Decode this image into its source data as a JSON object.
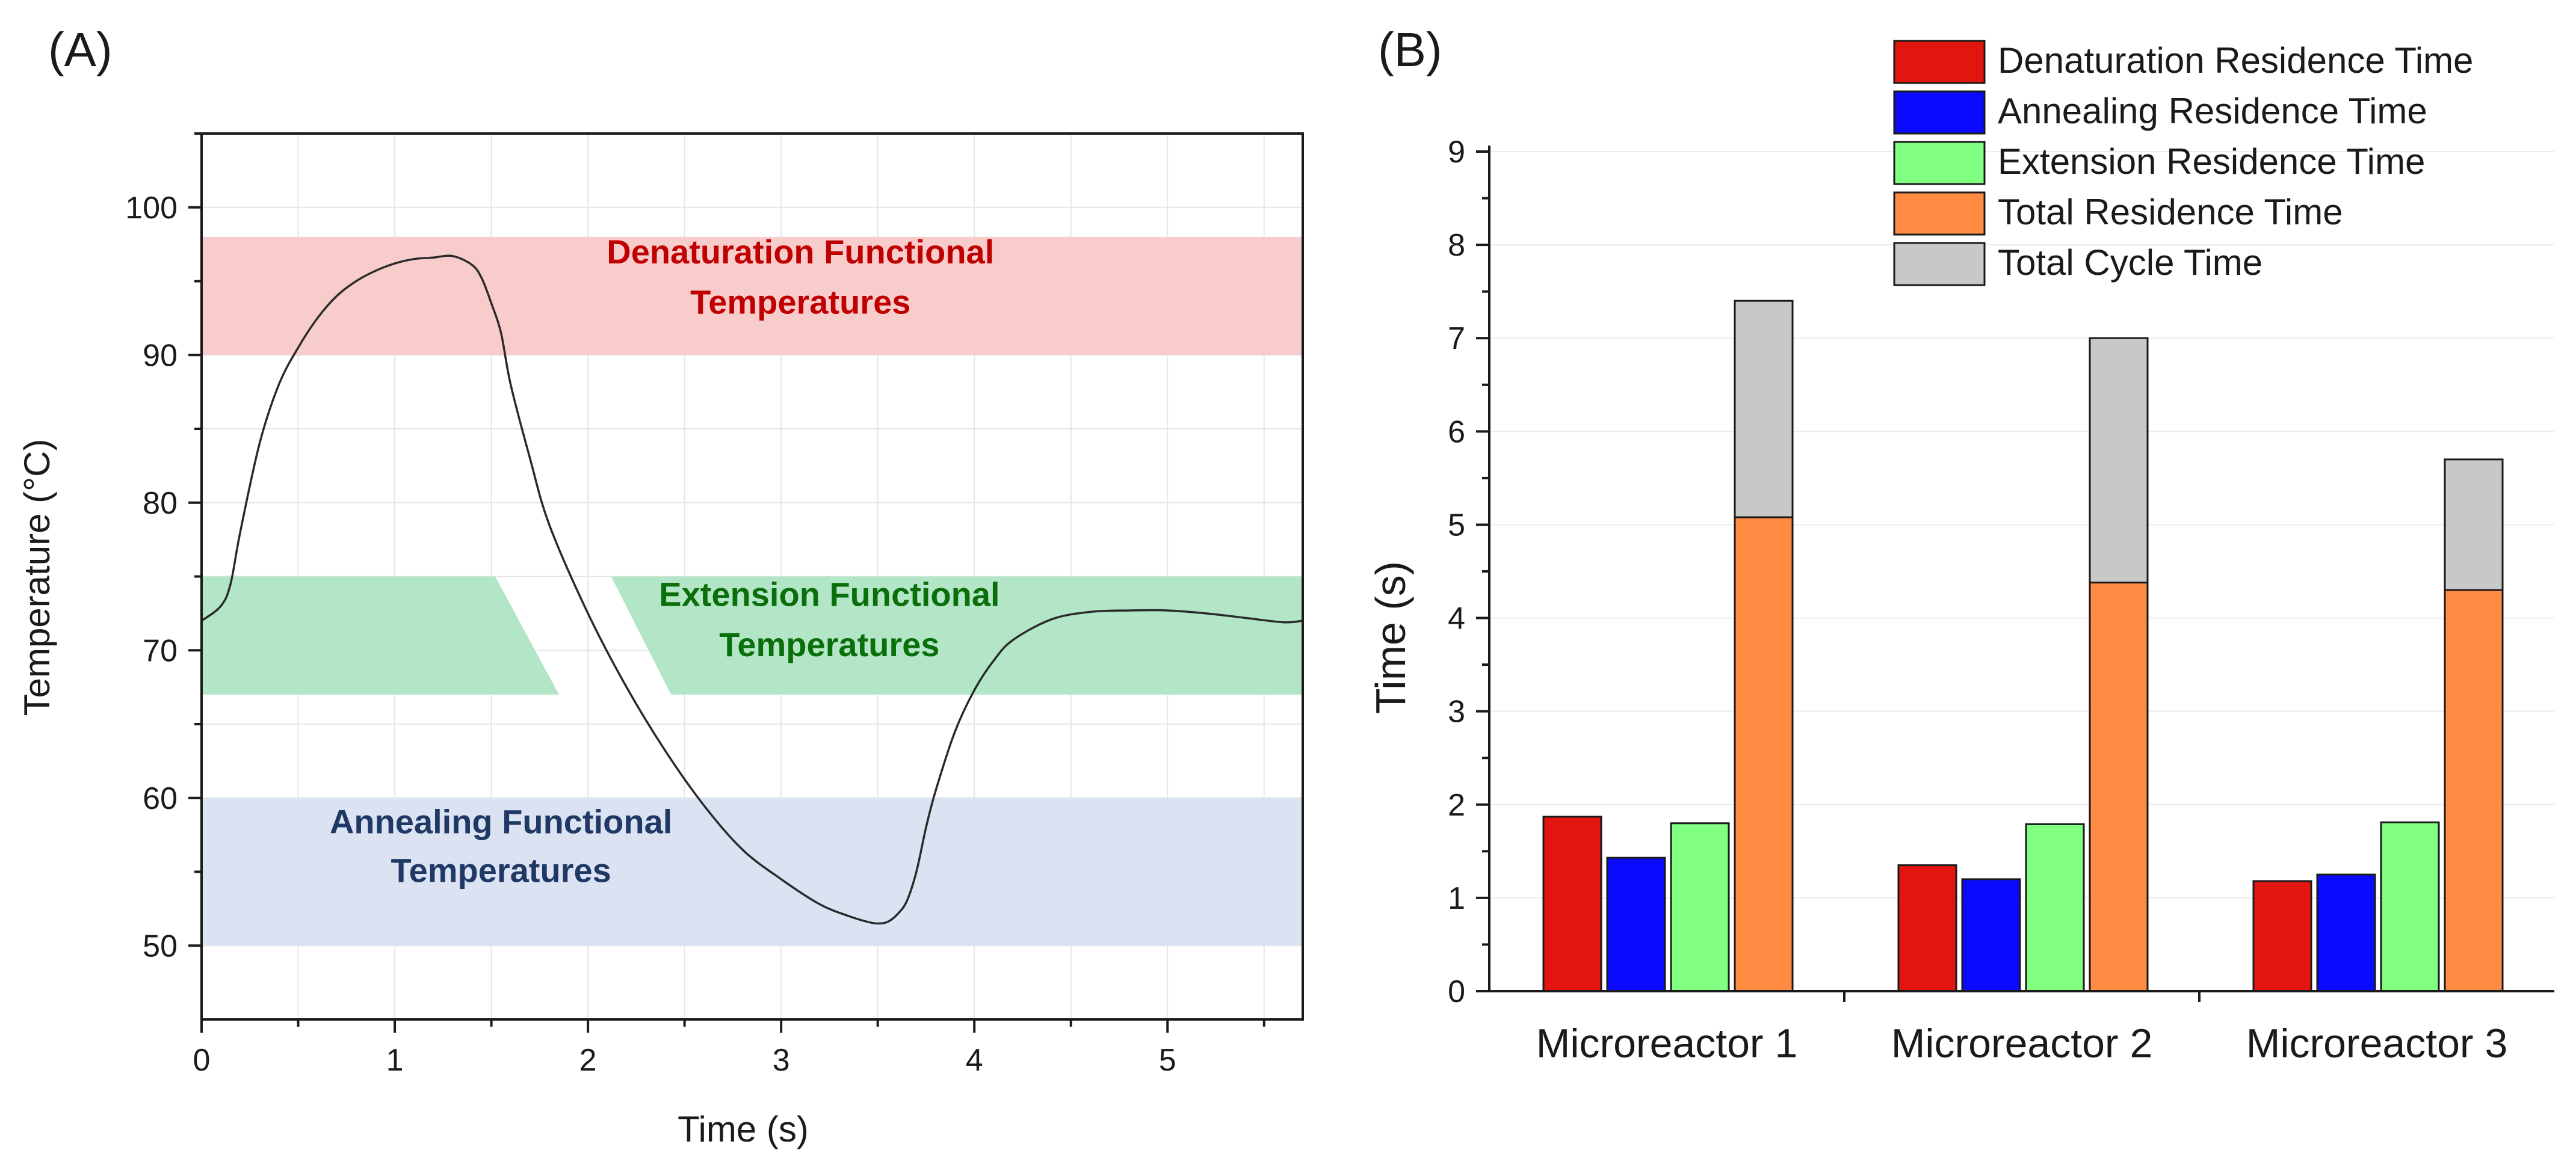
{
  "chart_data": [
    {
      "panel": "(A)",
      "type": "line",
      "xlabel": "Time (s)",
      "ylabel": "Temperature (°C)",
      "xlim": [
        0,
        5.7
      ],
      "ylim": [
        45,
        105
      ],
      "xticks": [
        "0",
        "1",
        "2",
        "3",
        "4",
        "5"
      ],
      "yticks": [
        "50",
        "60",
        "70",
        "80",
        "90",
        "100"
      ],
      "grid": true,
      "bands": [
        {
          "label_line1": "Denaturation Functional",
          "label_line2": "Temperatures",
          "ymin": 90,
          "ymax": 98,
          "fill": "#f9cccc",
          "text_color": "#c00000",
          "label_x": 3.1,
          "label_y1": 96.2,
          "label_y2": 92.8
        },
        {
          "label_line1": "Extension Functional",
          "label_line2": "Temperatures",
          "ymin": 67,
          "ymax": 75,
          "fill": "#b2e6c7",
          "text_color": "#0a6e0a",
          "label_x": 3.25,
          "label_y1": 73.0,
          "label_y2": 69.6
        },
        {
          "label_line1": "Annealing Functional",
          "label_line2": "Temperatures",
          "ymin": 50,
          "ymax": 60,
          "fill": "#dbe3f3",
          "text_color": "#1f3864",
          "label_x": 1.55,
          "label_y1": 57.6,
          "label_y2": 54.3
        }
      ],
      "series": [
        {
          "x": [
            0,
            0.1,
            0.15,
            0.2,
            0.3,
            0.4,
            0.5,
            0.6,
            0.7,
            0.8,
            0.9,
            1.0,
            1.1,
            1.2,
            1.3,
            1.4,
            1.45,
            1.5,
            1.55,
            1.6,
            1.7,
            1.8,
            2.0,
            2.2,
            2.4,
            2.6,
            2.8,
            3.0,
            3.2,
            3.35,
            3.45,
            3.5,
            3.55,
            3.6,
            3.65,
            3.7,
            3.75,
            3.8,
            3.9,
            4.0,
            4.1,
            4.2,
            4.4,
            4.6,
            4.8,
            5.0,
            5.2,
            5.4,
            5.6,
            5.7
          ],
          "y": [
            72,
            73,
            74.5,
            78,
            84,
            88,
            90.5,
            92.5,
            94,
            95,
            95.7,
            96.2,
            96.5,
            96.6,
            96.7,
            96.1,
            95.2,
            93.5,
            91.5,
            88,
            83,
            78.5,
            72.5,
            67.5,
            63.2,
            59.5,
            56.5,
            54.5,
            52.8,
            52,
            51.6,
            51.5,
            51.6,
            52.1,
            53,
            55,
            58,
            60.5,
            64.5,
            67.3,
            69.3,
            70.7,
            72.1,
            72.6,
            72.7,
            72.7,
            72.5,
            72.2,
            71.9,
            72
          ]
        }
      ]
    },
    {
      "panel": "(B)",
      "type": "bar",
      "ylabel": "Time (s)",
      "ylim": [
        0,
        9
      ],
      "yticks": [
        "0",
        "1",
        "2",
        "3",
        "4",
        "5",
        "6",
        "7",
        "8",
        "9"
      ],
      "categories": [
        "Microreactor 1",
        "Microreactor 2",
        "Microreactor 3"
      ],
      "legend_position": "top-right",
      "series": [
        {
          "name": "Denaturation Residence Time",
          "color": "#e3150f",
          "values": [
            1.87,
            1.35,
            1.18
          ]
        },
        {
          "name": "Annealing Residence Time",
          "color": "#0a0aff",
          "values": [
            1.43,
            1.2,
            1.25
          ]
        },
        {
          "name": "Extension Residence Time",
          "color": "#80ff80",
          "values": [
            1.8,
            1.79,
            1.81
          ]
        },
        {
          "name": "Total Residence Time",
          "color": "#ff8c42",
          "values": [
            5.08,
            4.38,
            4.3
          ]
        },
        {
          "name": "Total Cycle Time",
          "color": "#c8c8c8",
          "values": [
            7.4,
            7.0,
            5.7
          ]
        }
      ],
      "stack_note_free": true
    }
  ]
}
